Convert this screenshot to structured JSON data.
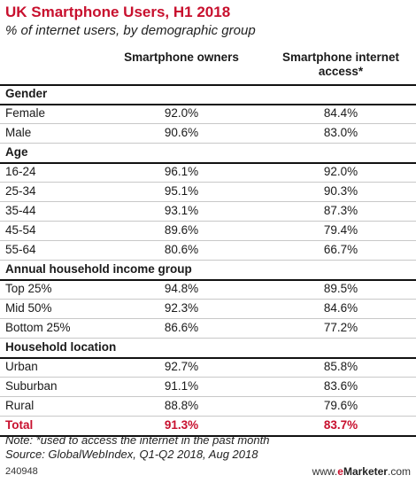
{
  "chart_data": {
    "type": "table",
    "title": "UK Smartphone Users, H1 2018",
    "subtitle": "% of internet users, by demographic group",
    "columns": [
      "Smartphone owners",
      "Smartphone internet access*"
    ],
    "groups": [
      {
        "name": "Gender",
        "rows": [
          {
            "label": "Female",
            "values": [
              "92.0%",
              "84.4%"
            ]
          },
          {
            "label": "Male",
            "values": [
              "90.6%",
              "83.0%"
            ]
          }
        ]
      },
      {
        "name": "Age",
        "rows": [
          {
            "label": "16-24",
            "values": [
              "96.1%",
              "92.0%"
            ]
          },
          {
            "label": "25-34",
            "values": [
              "95.1%",
              "90.3%"
            ]
          },
          {
            "label": "35-44",
            "values": [
              "93.1%",
              "87.3%"
            ]
          },
          {
            "label": "45-54",
            "values": [
              "89.6%",
              "79.4%"
            ]
          },
          {
            "label": "55-64",
            "values": [
              "80.6%",
              "66.7%"
            ]
          }
        ]
      },
      {
        "name": "Annual household income group",
        "rows": [
          {
            "label": "Top 25%",
            "values": [
              "94.8%",
              "89.5%"
            ]
          },
          {
            "label": "Mid 50%",
            "values": [
              "92.3%",
              "84.6%"
            ]
          },
          {
            "label": "Bottom 25%",
            "values": [
              "86.6%",
              "77.2%"
            ]
          }
        ]
      },
      {
        "name": "Household location",
        "rows": [
          {
            "label": "Urban",
            "values": [
              "92.7%",
              "85.8%"
            ]
          },
          {
            "label": "Suburban",
            "values": [
              "91.1%",
              "83.6%"
            ]
          },
          {
            "label": "Rural",
            "values": [
              "88.8%",
              "79.6%"
            ]
          }
        ]
      }
    ],
    "total": {
      "label": "Total",
      "values": [
        "91.3%",
        "83.7%"
      ]
    }
  },
  "notes": [
    "Note: *used to access the internet in the past month",
    "Source: GlobalWebIndex, Q1-Q2 2018, Aug 2018"
  ],
  "footer": {
    "id": "240948",
    "brand_prefix": "www.",
    "brand_e": "e",
    "brand_main": "Marketer",
    "brand_suffix": ".com"
  },
  "colors": {
    "accent": "#c8102e",
    "text": "#1a1a1a",
    "rule": "#c8c8c8"
  }
}
